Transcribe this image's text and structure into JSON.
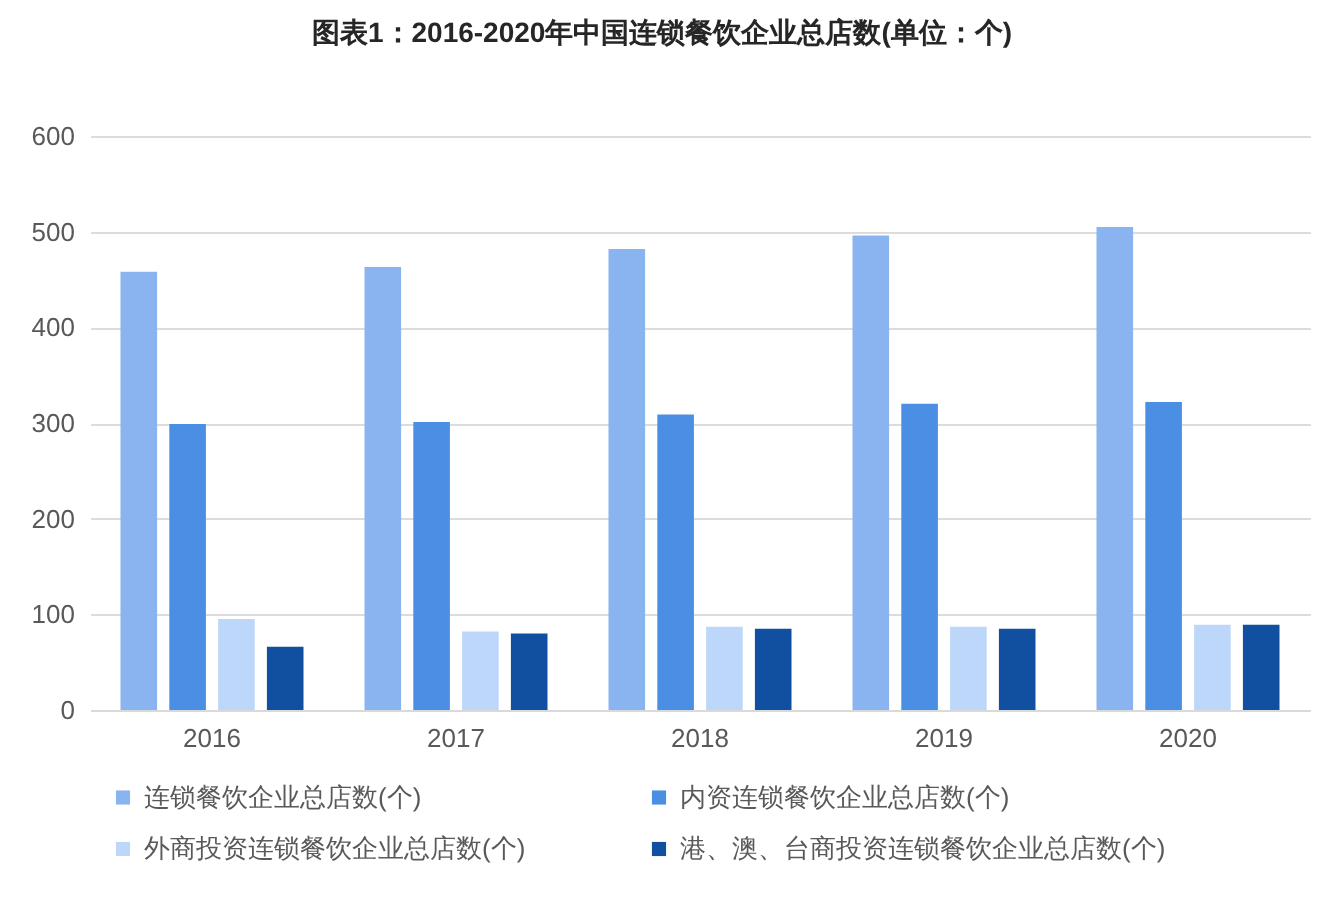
{
  "chart_data": {
    "type": "bar",
    "title": "图表1：2016-2020年中国连锁餐饮企业总店数(单位：个)",
    "categories": [
      "2016",
      "2017",
      "2018",
      "2019",
      "2020"
    ],
    "series": [
      {
        "name": "连锁餐饮企业总店数(个)",
        "color": "#8ab4f0",
        "values": [
          458,
          463,
          482,
          496,
          505
        ]
      },
      {
        "name": "内资连锁餐饮企业总店数(个)",
        "color": "#4a8fe4",
        "values": [
          299,
          301,
          309,
          320,
          322
        ]
      },
      {
        "name": "外商投资连锁餐饮企业总店数(个)",
        "color": "#bdd7fa",
        "values": [
          95,
          82,
          87,
          87,
          89
        ]
      },
      {
        "name": "港、澳、台商投资连锁餐饮企业总店数(个)",
        "color": "#1150a0",
        "values": [
          66,
          80,
          85,
          85,
          89
        ]
      }
    ],
    "ylim": [
      0,
      600
    ],
    "yticks": [
      0,
      100,
      200,
      300,
      400,
      500,
      600
    ],
    "grid": "y",
    "legend": "bottom"
  }
}
